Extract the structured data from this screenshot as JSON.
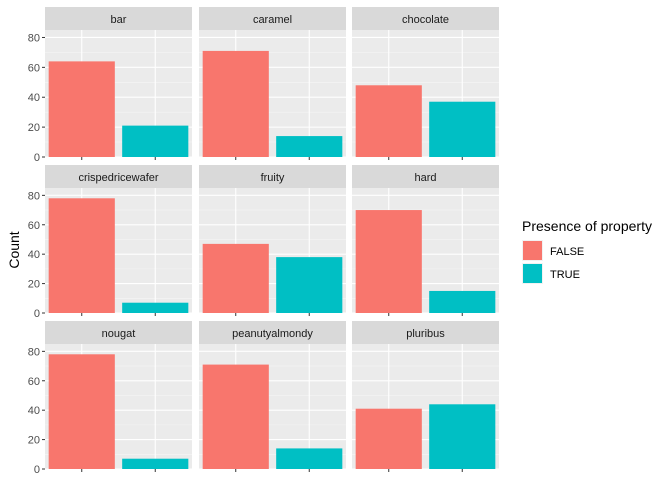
{
  "chart_data": {
    "type": "bar",
    "facet_layout": "3x3",
    "ylabel": "Count",
    "xlabel": "",
    "ylim": [
      0,
      85
    ],
    "yticks": [
      0,
      20,
      40,
      60,
      80
    ],
    "grid": true,
    "legend": {
      "title": "Presence of property",
      "placement": "right",
      "entries": [
        {
          "label": "FALSE",
          "color": "#F8766D"
        },
        {
          "label": "TRUE",
          "color": "#00BFC4"
        }
      ]
    },
    "facets": [
      {
        "name": "bar",
        "values": [
          64,
          21
        ]
      },
      {
        "name": "caramel",
        "values": [
          71,
          14
        ]
      },
      {
        "name": "chocolate",
        "values": [
          48,
          37
        ]
      },
      {
        "name": "crispedricewafer",
        "values": [
          78,
          7
        ]
      },
      {
        "name": "fruity",
        "values": [
          47,
          38
        ]
      },
      {
        "name": "hard",
        "values": [
          70,
          15
        ]
      },
      {
        "name": "nougat",
        "values": [
          78,
          7
        ]
      },
      {
        "name": "peanutyalmondy",
        "values": [
          71,
          14
        ]
      },
      {
        "name": "pluribus",
        "values": [
          41,
          44
        ]
      }
    ]
  }
}
